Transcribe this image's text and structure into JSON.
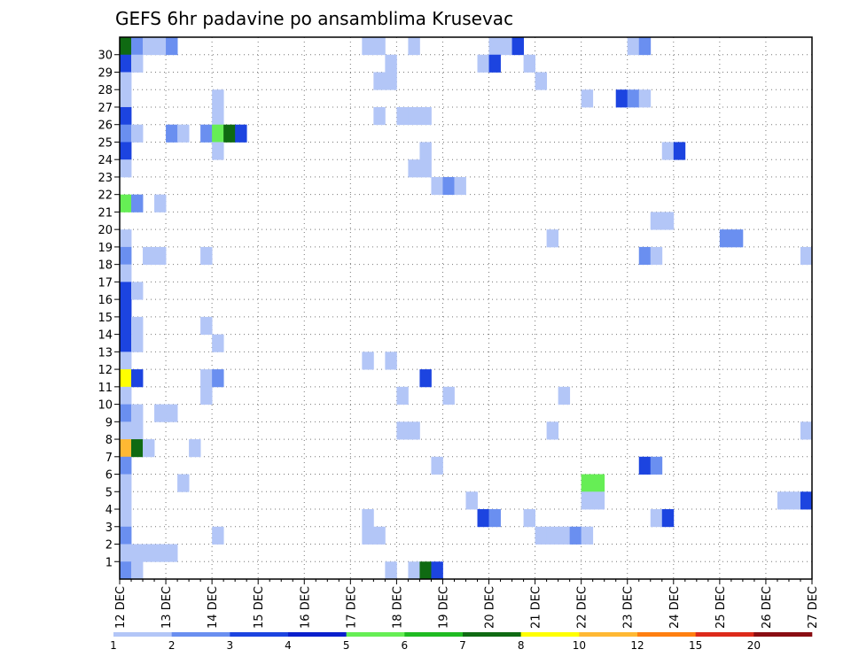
{
  "chart_data": {
    "type": "heatmap",
    "title": "GEFS 6hr padavine po ansamblima Krusevac",
    "xlabel": "",
    "ylabel": "",
    "x_start": "12 DEC",
    "x_end": "27 DEC",
    "x_step_hours": 6,
    "x_tick_labels": [
      "12 DEC",
      "13 DEC",
      "14 DEC",
      "15 DEC",
      "16 DEC",
      "17 DEC",
      "18 DEC",
      "19 DEC",
      "20 DEC",
      "21 DEC",
      "22 DEC",
      "23 DEC",
      "24 DEC",
      "25 DEC",
      "26 DEC",
      "27 DEC"
    ],
    "y_tick_labels": [
      "1",
      "2",
      "3",
      "4",
      "5",
      "6",
      "7",
      "8",
      "9",
      "10",
      "11",
      "12",
      "13",
      "14",
      "15",
      "16",
      "17",
      "18",
      "19",
      "20",
      "21",
      "22",
      "23",
      "24",
      "25",
      "26",
      "27",
      "28",
      "29",
      "30"
    ],
    "grid": true,
    "legend": "colorbar-bottom",
    "levels": [
      "1",
      "2",
      "3",
      "4",
      "5",
      "6",
      "7",
      "8",
      "10",
      "12",
      "15",
      "20"
    ],
    "level_colors": [
      "#b3c6f7",
      "#6a8ff0",
      "#1c44e0",
      "#0a1fcc",
      "#66ee55",
      "#1fbb22",
      "#0f6a12",
      "#ffff00",
      "#ffb833",
      "#ff7f10",
      "#dd2a1a",
      "#8a0d12"
    ],
    "cells": [
      {
        "m": 30,
        "t": 0,
        "c": "#0f6a12"
      },
      {
        "m": 30,
        "t": 1,
        "c": "#6a8ff0"
      },
      {
        "m": 30,
        "t": 2,
        "c": "#b3c6f7"
      },
      {
        "m": 30,
        "t": 3,
        "c": "#b3c6f7"
      },
      {
        "m": 30,
        "t": 4,
        "c": "#6a8ff0"
      },
      {
        "m": 30,
        "t": 21,
        "c": "#b3c6f7"
      },
      {
        "m": 30,
        "t": 22,
        "c": "#b3c6f7"
      },
      {
        "m": 30,
        "t": 25,
        "c": "#b3c6f7"
      },
      {
        "m": 30,
        "t": 32,
        "c": "#b3c6f7"
      },
      {
        "m": 30,
        "t": 33,
        "c": "#b3c6f7"
      },
      {
        "m": 30,
        "t": 34,
        "c": "#1c44e0"
      },
      {
        "m": 30,
        "t": 44,
        "c": "#b3c6f7"
      },
      {
        "m": 30,
        "t": 45,
        "c": "#6a8ff0"
      },
      {
        "m": 29,
        "t": 0,
        "c": "#1c44e0"
      },
      {
        "m": 29,
        "t": 1,
        "c": "#b3c6f7"
      },
      {
        "m": 29,
        "t": 23,
        "c": "#b3c6f7"
      },
      {
        "m": 29,
        "t": 31,
        "c": "#b3c6f7"
      },
      {
        "m": 29,
        "t": 32,
        "c": "#1c44e0"
      },
      {
        "m": 29,
        "t": 35,
        "c": "#b3c6f7"
      },
      {
        "m": 28,
        "t": 0,
        "c": "#b3c6f7"
      },
      {
        "m": 28,
        "t": 22,
        "c": "#b3c6f7"
      },
      {
        "m": 28,
        "t": 23,
        "c": "#b3c6f7"
      },
      {
        "m": 28,
        "t": 36,
        "c": "#b3c6f7"
      },
      {
        "m": 27,
        "t": 0,
        "c": "#b3c6f7"
      },
      {
        "m": 27,
        "t": 8,
        "c": "#b3c6f7"
      },
      {
        "m": 27,
        "t": 40,
        "c": "#b3c6f7"
      },
      {
        "m": 27,
        "t": 43,
        "c": "#1c44e0"
      },
      {
        "m": 27,
        "t": 44,
        "c": "#6a8ff0"
      },
      {
        "m": 27,
        "t": 45,
        "c": "#b3c6f7"
      },
      {
        "m": 26,
        "t": 0,
        "c": "#1c44e0"
      },
      {
        "m": 26,
        "t": 8,
        "c": "#b3c6f7"
      },
      {
        "m": 26,
        "t": 22,
        "c": "#b3c6f7"
      },
      {
        "m": 26,
        "t": 24,
        "c": "#b3c6f7"
      },
      {
        "m": 26,
        "t": 25,
        "c": "#b3c6f7"
      },
      {
        "m": 26,
        "t": 26,
        "c": "#b3c6f7"
      },
      {
        "m": 25,
        "t": 0,
        "c": "#6a8ff0"
      },
      {
        "m": 25,
        "t": 1,
        "c": "#b3c6f7"
      },
      {
        "m": 25,
        "t": 4,
        "c": "#6a8ff0"
      },
      {
        "m": 25,
        "t": 5,
        "c": "#b3c6f7"
      },
      {
        "m": 25,
        "t": 7,
        "c": "#6a8ff0"
      },
      {
        "m": 25,
        "t": 8,
        "c": "#66ee55"
      },
      {
        "m": 25,
        "t": 9,
        "c": "#0f6a12"
      },
      {
        "m": 25,
        "t": 10,
        "c": "#1c44e0"
      },
      {
        "m": 24,
        "t": 0,
        "c": "#1c44e0"
      },
      {
        "m": 24,
        "t": 8,
        "c": "#b3c6f7"
      },
      {
        "m": 24,
        "t": 26,
        "c": "#b3c6f7"
      },
      {
        "m": 24,
        "t": 47,
        "c": "#b3c6f7"
      },
      {
        "m": 24,
        "t": 48,
        "c": "#1c44e0"
      },
      {
        "m": 23,
        "t": 0,
        "c": "#b3c6f7"
      },
      {
        "m": 23,
        "t": 25,
        "c": "#b3c6f7"
      },
      {
        "m": 23,
        "t": 26,
        "c": "#b3c6f7"
      },
      {
        "m": 22,
        "t": 27,
        "c": "#b3c6f7"
      },
      {
        "m": 22,
        "t": 28,
        "c": "#6a8ff0"
      },
      {
        "m": 22,
        "t": 29,
        "c": "#b3c6f7"
      },
      {
        "m": 21,
        "t": 0,
        "c": "#66ee55"
      },
      {
        "m": 21,
        "t": 1,
        "c": "#6a8ff0"
      },
      {
        "m": 21,
        "t": 3,
        "c": "#b3c6f7"
      },
      {
        "m": 20,
        "t": 46,
        "c": "#b3c6f7"
      },
      {
        "m": 20,
        "t": 47,
        "c": "#b3c6f7"
      },
      {
        "m": 19,
        "t": 0,
        "c": "#b3c6f7"
      },
      {
        "m": 19,
        "t": 37,
        "c": "#b3c6f7"
      },
      {
        "m": 19,
        "t": 52,
        "c": "#6a8ff0"
      },
      {
        "m": 19,
        "t": 53,
        "c": "#6a8ff0"
      },
      {
        "m": 18,
        "t": 0,
        "c": "#6a8ff0"
      },
      {
        "m": 18,
        "t": 2,
        "c": "#b3c6f7"
      },
      {
        "m": 18,
        "t": 3,
        "c": "#b3c6f7"
      },
      {
        "m": 18,
        "t": 7,
        "c": "#b3c6f7"
      },
      {
        "m": 18,
        "t": 45,
        "c": "#6a8ff0"
      },
      {
        "m": 18,
        "t": 46,
        "c": "#b3c6f7"
      },
      {
        "m": 18,
        "t": 59,
        "c": "#b3c6f7"
      },
      {
        "m": 17,
        "t": 0,
        "c": "#b3c6f7"
      },
      {
        "m": 16,
        "t": 0,
        "c": "#1c44e0"
      },
      {
        "m": 16,
        "t": 1,
        "c": "#b3c6f7"
      },
      {
        "m": 15,
        "t": 0,
        "c": "#1c44e0"
      },
      {
        "m": 14,
        "t": 0,
        "c": "#1c44e0"
      },
      {
        "m": 14,
        "t": 1,
        "c": "#b3c6f7"
      },
      {
        "m": 14,
        "t": 7,
        "c": "#b3c6f7"
      },
      {
        "m": 13,
        "t": 0,
        "c": "#1c44e0"
      },
      {
        "m": 13,
        "t": 1,
        "c": "#b3c6f7"
      },
      {
        "m": 13,
        "t": 8,
        "c": "#b3c6f7"
      },
      {
        "m": 12,
        "t": 0,
        "c": "#b3c6f7"
      },
      {
        "m": 12,
        "t": 21,
        "c": "#b3c6f7"
      },
      {
        "m": 12,
        "t": 23,
        "c": "#b3c6f7"
      },
      {
        "m": 11,
        "t": 0,
        "c": "#ffff00"
      },
      {
        "m": 11,
        "t": 1,
        "c": "#1c44e0"
      },
      {
        "m": 11,
        "t": 7,
        "c": "#b3c6f7"
      },
      {
        "m": 11,
        "t": 8,
        "c": "#6a8ff0"
      },
      {
        "m": 11,
        "t": 26,
        "c": "#1c44e0"
      },
      {
        "m": 10,
        "t": 0,
        "c": "#b3c6f7"
      },
      {
        "m": 10,
        "t": 7,
        "c": "#b3c6f7"
      },
      {
        "m": 10,
        "t": 24,
        "c": "#b3c6f7"
      },
      {
        "m": 10,
        "t": 28,
        "c": "#b3c6f7"
      },
      {
        "m": 10,
        "t": 38,
        "c": "#b3c6f7"
      },
      {
        "m": 9,
        "t": 0,
        "c": "#6a8ff0"
      },
      {
        "m": 9,
        "t": 1,
        "c": "#b3c6f7"
      },
      {
        "m": 9,
        "t": 3,
        "c": "#b3c6f7"
      },
      {
        "m": 9,
        "t": 4,
        "c": "#b3c6f7"
      },
      {
        "m": 8,
        "t": 0,
        "c": "#b3c6f7"
      },
      {
        "m": 8,
        "t": 1,
        "c": "#b3c6f7"
      },
      {
        "m": 8,
        "t": 24,
        "c": "#b3c6f7"
      },
      {
        "m": 8,
        "t": 25,
        "c": "#b3c6f7"
      },
      {
        "m": 8,
        "t": 37,
        "c": "#b3c6f7"
      },
      {
        "m": 8,
        "t": 59,
        "c": "#b3c6f7"
      },
      {
        "m": 7,
        "t": 0,
        "c": "#ffb833"
      },
      {
        "m": 7,
        "t": 1,
        "c": "#0f6a12"
      },
      {
        "m": 7,
        "t": 2,
        "c": "#b3c6f7"
      },
      {
        "m": 7,
        "t": 6,
        "c": "#b3c6f7"
      },
      {
        "m": 6,
        "t": 0,
        "c": "#6a8ff0"
      },
      {
        "m": 6,
        "t": 27,
        "c": "#b3c6f7"
      },
      {
        "m": 6,
        "t": 45,
        "c": "#1c44e0"
      },
      {
        "m": 6,
        "t": 46,
        "c": "#6a8ff0"
      },
      {
        "m": 5,
        "t": 0,
        "c": "#b3c6f7"
      },
      {
        "m": 5,
        "t": 5,
        "c": "#b3c6f7"
      },
      {
        "m": 5,
        "t": 40,
        "c": "#66ee55"
      },
      {
        "m": 5,
        "t": 41,
        "c": "#66ee55"
      },
      {
        "m": 4,
        "t": 0,
        "c": "#b3c6f7"
      },
      {
        "m": 4,
        "t": 30,
        "c": "#b3c6f7"
      },
      {
        "m": 4,
        "t": 40,
        "c": "#b3c6f7"
      },
      {
        "m": 4,
        "t": 41,
        "c": "#b3c6f7"
      },
      {
        "m": 4,
        "t": 57,
        "c": "#b3c6f7"
      },
      {
        "m": 4,
        "t": 58,
        "c": "#b3c6f7"
      },
      {
        "m": 4,
        "t": 59,
        "c": "#1c44e0"
      },
      {
        "m": 3,
        "t": 0,
        "c": "#b3c6f7"
      },
      {
        "m": 3,
        "t": 21,
        "c": "#b3c6f7"
      },
      {
        "m": 3,
        "t": 31,
        "c": "#1c44e0"
      },
      {
        "m": 3,
        "t": 32,
        "c": "#6a8ff0"
      },
      {
        "m": 3,
        "t": 35,
        "c": "#b3c6f7"
      },
      {
        "m": 3,
        "t": 46,
        "c": "#b3c6f7"
      },
      {
        "m": 3,
        "t": 47,
        "c": "#1c44e0"
      },
      {
        "m": 2,
        "t": 0,
        "c": "#6a8ff0"
      },
      {
        "m": 2,
        "t": 8,
        "c": "#b3c6f7"
      },
      {
        "m": 2,
        "t": 21,
        "c": "#b3c6f7"
      },
      {
        "m": 2,
        "t": 22,
        "c": "#b3c6f7"
      },
      {
        "m": 2,
        "t": 36,
        "c": "#b3c6f7"
      },
      {
        "m": 2,
        "t": 37,
        "c": "#b3c6f7"
      },
      {
        "m": 2,
        "t": 38,
        "c": "#b3c6f7"
      },
      {
        "m": 2,
        "t": 39,
        "c": "#6a8ff0"
      },
      {
        "m": 2,
        "t": 40,
        "c": "#b3c6f7"
      },
      {
        "m": 1,
        "t": 0,
        "c": "#b3c6f7"
      },
      {
        "m": 1,
        "t": 1,
        "c": "#b3c6f7"
      },
      {
        "m": 1,
        "t": 2,
        "c": "#b3c6f7"
      },
      {
        "m": 1,
        "t": 3,
        "c": "#b3c6f7"
      },
      {
        "m": 1,
        "t": 4,
        "c": "#b3c6f7"
      },
      {
        "m": 0,
        "t": 0,
        "c": "#6a8ff0"
      },
      {
        "m": 0,
        "t": 1,
        "c": "#b3c6f7"
      },
      {
        "m": 0,
        "t": 23,
        "c": "#b3c6f7"
      },
      {
        "m": 0,
        "t": 25,
        "c": "#b3c6f7"
      },
      {
        "m": 0,
        "t": 26,
        "c": "#0f6a12"
      },
      {
        "m": 0,
        "t": 27,
        "c": "#1c44e0"
      }
    ]
  }
}
